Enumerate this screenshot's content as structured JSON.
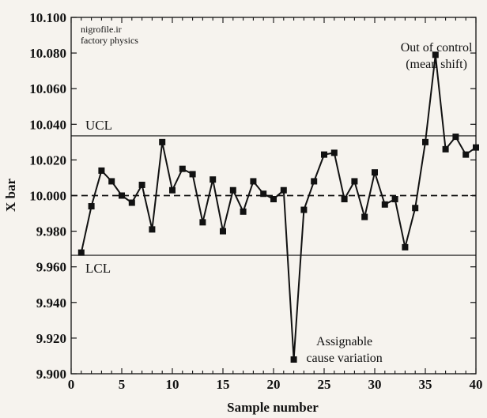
{
  "watermark": {
    "line1": "nigrofile.ir",
    "line2": "factory physics"
  },
  "chart_data": {
    "type": "line",
    "title": "",
    "xlabel": "Sample number",
    "ylabel": "X bar",
    "xlim": [
      0,
      40
    ],
    "ylim": [
      9.9,
      10.1
    ],
    "xticks": [
      0,
      5,
      10,
      15,
      20,
      25,
      30,
      35,
      40
    ],
    "yticks": [
      9.9,
      9.92,
      9.94,
      9.96,
      9.98,
      10.0,
      10.02,
      10.04,
      10.06,
      10.08,
      10.1
    ],
    "ytick_labels": [
      "9.900",
      "9.920",
      "9.940",
      "9.960",
      "9.980",
      "10.000",
      "10.020",
      "10.040",
      "10.060",
      "10.080",
      "10.100"
    ],
    "grid": false,
    "ucl": 10.0335,
    "lcl": 9.9665,
    "center": 10.0,
    "ucl_label": "UCL",
    "lcl_label": "LCL",
    "series": [
      {
        "name": "X bar",
        "marker": "square",
        "x": [
          1,
          2,
          3,
          4,
          5,
          6,
          7,
          8,
          9,
          10,
          11,
          12,
          13,
          14,
          15,
          16,
          17,
          18,
          19,
          20,
          21,
          22,
          23,
          24,
          25,
          26,
          27,
          28,
          29,
          30,
          31,
          32,
          33,
          34,
          35,
          36,
          37,
          38,
          39,
          40
        ],
        "values": [
          9.968,
          9.994,
          10.014,
          10.008,
          10.0,
          9.996,
          10.006,
          9.981,
          10.03,
          10.003,
          10.015,
          10.012,
          9.985,
          10.009,
          9.98,
          10.003,
          9.991,
          10.008,
          10.001,
          9.998,
          10.003,
          9.908,
          9.992,
          10.008,
          10.023,
          10.024,
          9.998,
          10.008,
          9.988,
          10.013,
          9.995,
          9.998,
          9.971,
          9.993,
          10.03,
          10.079,
          10.026,
          10.033,
          10.023,
          10.027
        ]
      }
    ],
    "annotations": [
      {
        "id": "out-of-control",
        "lines": [
          "Out of control",
          "(mean shift)"
        ],
        "x": 36.1,
        "y": 10.081
      },
      {
        "id": "assignable-cause",
        "lines": [
          "Assignable",
          "cause variation"
        ],
        "x": 27.0,
        "y": 9.916
      }
    ]
  }
}
